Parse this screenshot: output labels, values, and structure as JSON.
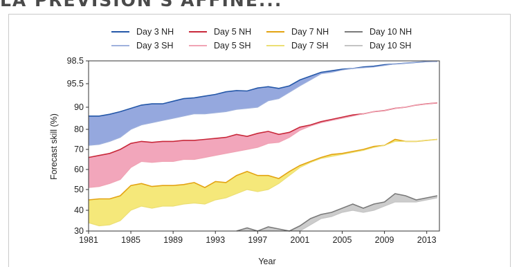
{
  "page": {
    "headline": "LA PRÉVISION S'AFFINE..."
  },
  "chart_data": {
    "type": "area",
    "xlabel": "Year",
    "ylabel": "Forecast skill (%)",
    "x_ticks": [
      "1981",
      "1985",
      "1989",
      "1993",
      "1997",
      "2001",
      "2005",
      "2009",
      "2013"
    ],
    "y_ticks": [
      "30",
      "40",
      "50",
      "60",
      "70",
      "80",
      "90",
      "95.5",
      "98.5"
    ],
    "y_scale": "nonlinear (stretched toward 100%)",
    "xlim": [
      1981,
      2014.2
    ],
    "ylim": [
      30,
      98.5
    ],
    "legend": {
      "placement": "top-center",
      "entries": [
        {
          "label": "Day 3 NH",
          "color": "#2457a8",
          "style": "dark"
        },
        {
          "label": "Day 5 NH",
          "color": "#c8283a",
          "style": "dark"
        },
        {
          "label": "Day 7 NH",
          "color": "#e3a311",
          "style": "dark"
        },
        {
          "label": "Day 10 NH",
          "color": "#7a7a7a",
          "style": "dark"
        },
        {
          "label": "Day 3 SH",
          "color": "#9fb1dd",
          "style": "light"
        },
        {
          "label": "Day 5 SH",
          "color": "#f0a3b4",
          "style": "light"
        },
        {
          "label": "Day 7 SH",
          "color": "#ecdf74",
          "style": "light"
        },
        {
          "label": "Day 10 SH",
          "color": "#c4c4c4",
          "style": "light"
        }
      ]
    },
    "fill_colors": {
      "day3": "#8a9fda",
      "day5": "#f19cb4",
      "day7": "#f4e56b",
      "day10": "#c7c7c7"
    },
    "series": [
      {
        "name": "Day 3 NH",
        "x": [
          1981,
          1982,
          1983,
          1984,
          1985,
          1986,
          1987,
          1988,
          1989,
          1990,
          1991,
          1992,
          1993,
          1994,
          1995,
          1996,
          1997,
          1998,
          1999,
          2000,
          2001,
          2002,
          2003,
          2004,
          2005,
          2006,
          2007,
          2008,
          2009,
          2010,
          2011,
          2012,
          2013,
          2014
        ],
        "y": [
          86,
          86,
          86.8,
          88,
          89.5,
          90.5,
          90.8,
          90.8,
          91.4,
          92,
          92.2,
          92.6,
          93,
          93.6,
          93.9,
          93.8,
          94.5,
          94.8,
          94.4,
          95,
          96,
          96.5,
          97,
          97.2,
          97.4,
          97.5,
          97.7,
          97.8,
          98,
          98.1,
          98.2,
          98.3,
          98.4,
          98.45
        ]
      },
      {
        "name": "Day 3 SH",
        "x": [
          1981,
          1982,
          1983,
          1984,
          1985,
          1986,
          1987,
          1988,
          1989,
          1990,
          1991,
          1992,
          1993,
          1994,
          1995,
          1996,
          1997,
          1998,
          1999,
          2000,
          2001,
          2002,
          2003,
          2004,
          2005,
          2006,
          2007,
          2008,
          2009,
          2010,
          2011,
          2012,
          2013,
          2014
        ],
        "y": [
          72,
          72.5,
          74,
          76,
          80,
          82,
          83,
          84,
          85,
          86,
          87,
          87,
          87.5,
          88,
          89,
          89.5,
          90,
          91.5,
          92,
          93.5,
          95,
          96,
          96.8,
          97,
          97.3,
          97.5,
          97.6,
          97.7,
          97.9,
          98.1,
          98.2,
          98.3,
          98.4,
          98.4
        ]
      },
      {
        "name": "Day 5 NH",
        "x": [
          1981,
          1982,
          1983,
          1984,
          1985,
          1986,
          1987,
          1988,
          1989,
          1990,
          1991,
          1992,
          1993,
          1994,
          1995,
          1996,
          1997,
          1998,
          1999,
          2000,
          2001,
          2002,
          2003,
          2004,
          2005,
          2006,
          2007,
          2008,
          2009,
          2010,
          2011,
          2012,
          2013,
          2014
        ],
        "y": [
          66,
          67,
          68,
          70,
          73,
          74,
          73.5,
          74,
          74,
          74.5,
          74.5,
          75,
          75.5,
          76,
          77.5,
          76.5,
          78,
          79,
          77.5,
          78.5,
          81,
          82,
          83.5,
          84.5,
          85.5,
          86.5,
          87,
          88,
          88.5,
          89.5,
          90,
          90.5,
          90.8,
          91
        ]
      },
      {
        "name": "Day 5 SH",
        "x": [
          1981,
          1982,
          1983,
          1984,
          1985,
          1986,
          1987,
          1988,
          1989,
          1990,
          1991,
          1992,
          1993,
          1994,
          1995,
          1996,
          1997,
          1998,
          1999,
          2000,
          2001,
          2002,
          2003,
          2004,
          2005,
          2006,
          2007,
          2008,
          2009,
          2010,
          2011,
          2012,
          2013,
          2014
        ],
        "y": [
          51,
          51.5,
          53,
          55,
          61,
          64,
          63.5,
          64,
          64,
          65,
          65,
          66,
          67,
          68,
          69,
          70,
          71,
          73,
          73.5,
          76,
          79.5,
          81.5,
          83,
          84,
          85,
          86,
          87,
          88,
          88.5,
          89.5,
          90,
          90.5,
          90.8,
          91
        ]
      },
      {
        "name": "Day 7 NH",
        "x": [
          1981,
          1982,
          1983,
          1984,
          1985,
          1986,
          1987,
          1988,
          1989,
          1990,
          1991,
          1992,
          1993,
          1994,
          1995,
          1996,
          1997,
          1998,
          1999,
          2000,
          2001,
          2002,
          2003,
          2004,
          2005,
          2006,
          2007,
          2008,
          2009,
          2010,
          2011,
          2012,
          2013,
          2014
        ],
        "y": [
          45,
          45.5,
          45.5,
          47,
          52,
          53,
          51.5,
          52,
          52,
          52.5,
          53.5,
          51,
          54,
          53.5,
          57,
          59,
          57,
          57,
          55.5,
          59,
          62,
          64,
          66,
          67.5,
          68,
          69,
          70,
          71.5,
          72,
          75,
          74,
          74,
          74.5,
          75
        ]
      },
      {
        "name": "Day 7 SH",
        "x": [
          1981,
          1982,
          1983,
          1984,
          1985,
          1986,
          1987,
          1988,
          1989,
          1990,
          1991,
          1992,
          1993,
          1994,
          1995,
          1996,
          1997,
          1998,
          1999,
          2000,
          2001,
          2002,
          2003,
          2004,
          2005,
          2006,
          2007,
          2008,
          2009,
          2010,
          2011,
          2012,
          2013,
          2014
        ],
        "y": [
          34,
          32.5,
          33,
          35,
          40,
          42,
          41,
          42,
          42,
          43,
          43.5,
          43,
          45,
          46,
          48,
          50,
          49,
          50,
          53,
          57,
          61,
          63.5,
          65.5,
          66.5,
          67.5,
          68.5,
          69.5,
          71,
          72,
          74,
          74,
          74,
          74.5,
          75
        ]
      },
      {
        "name": "Day 10 NH",
        "x": [
          1995,
          1996,
          1997,
          1998,
          1999,
          2000,
          2001,
          2002,
          2003,
          2004,
          2005,
          2006,
          2007,
          2008,
          2009,
          2010,
          2011,
          2012,
          2013,
          2014
        ],
        "y": [
          30,
          31.5,
          30,
          32,
          31,
          30,
          32.5,
          36,
          38,
          39,
          41,
          43,
          41,
          43,
          44,
          48,
          47,
          45,
          46,
          47
        ]
      },
      {
        "name": "Day 10 SH",
        "x": [
          2001,
          2002,
          2003,
          2004,
          2005,
          2006,
          2007,
          2008,
          2009,
          2010,
          2011,
          2012,
          2013,
          2014
        ],
        "y": [
          30,
          33,
          36,
          37,
          39,
          40,
          39,
          40,
          42,
          44,
          44,
          44,
          45,
          46
        ]
      }
    ]
  }
}
